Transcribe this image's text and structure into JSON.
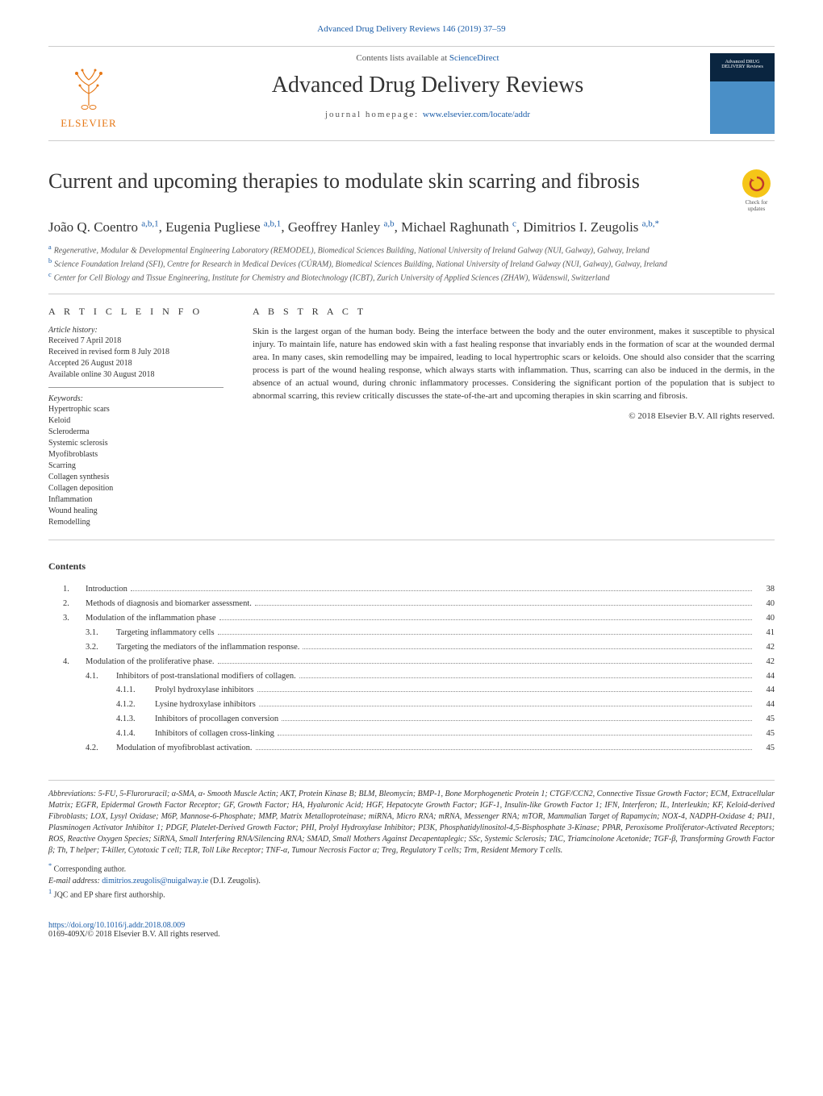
{
  "citation": "Advanced Drug Delivery Reviews 146 (2019) 37–59",
  "banner": {
    "contents_prefix": "Contents lists available at ",
    "contents_link": "ScienceDirect",
    "journal_title": "Advanced Drug Delivery Reviews",
    "homepage_prefix": "journal homepage: ",
    "homepage_url": "www.elsevier.com/locate/addr",
    "publisher": "ELSEVIER",
    "cover_label": "Advanced DRUG DELIVERY Reviews",
    "check_updates": "Check for updates"
  },
  "paper": {
    "title": "Current and upcoming therapies to modulate skin scarring and fibrosis",
    "authors_html": "João Q. Coentro <sup>a,b,1</sup>, Eugenia Pugliese <sup>a,b,1</sup>, Geoffrey Hanley <sup>a,b</sup>, Michael Raghunath <sup>c</sup>, Dimitrios I. Zeugolis <sup>a,b,*</sup>",
    "authors": [
      {
        "name": "João Q. Coentro",
        "sup": "a,b,1"
      },
      {
        "name": "Eugenia Pugliese",
        "sup": "a,b,1"
      },
      {
        "name": "Geoffrey Hanley",
        "sup": "a,b"
      },
      {
        "name": "Michael Raghunath",
        "sup": "c"
      },
      {
        "name": "Dimitrios I. Zeugolis",
        "sup": "a,b,*"
      }
    ],
    "affiliations": [
      {
        "key": "a",
        "text": "Regenerative, Modular & Developmental Engineering Laboratory (REMODEL), Biomedical Sciences Building, National University of Ireland Galway (NUI, Galway), Galway, Ireland"
      },
      {
        "key": "b",
        "text": "Science Foundation Ireland (SFI), Centre for Research in Medical Devices (CÚRAM), Biomedical Sciences Building, National University of Ireland Galway (NUI, Galway), Galway, Ireland"
      },
      {
        "key": "c",
        "text": "Center for Cell Biology and Tissue Engineering, Institute for Chemistry and Biotechnology (ICBT), Zurich University of Applied Sciences (ZHAW), Wädenswil, Switzerland"
      }
    ]
  },
  "article_info": {
    "head": "A R T I C L E   I N F O",
    "history_label": "Article history:",
    "history": [
      "Received 7 April 2018",
      "Received in revised form 8 July 2018",
      "Accepted 26 August 2018",
      "Available online 30 August 2018"
    ],
    "keywords_label": "Keywords:",
    "keywords": [
      "Hypertrophic scars",
      "Keloid",
      "Scleroderma",
      "Systemic sclerosis",
      "Myofibroblasts",
      "Scarring",
      "Collagen synthesis",
      "Collagen deposition",
      "Inflammation",
      "Wound healing",
      "Remodelling"
    ]
  },
  "abstract": {
    "head": "A B S T R A C T",
    "text": "Skin is the largest organ of the human body. Being the interface between the body and the outer environment, makes it susceptible to physical injury. To maintain life, nature has endowed skin with a fast healing response that invariably ends in the formation of scar at the wounded dermal area. In many cases, skin remodelling may be impaired, leading to local hypertrophic scars or keloids. One should also consider that the scarring process is part of the wound healing response, which always starts with inflammation. Thus, scarring can also be induced in the dermis, in the absence of an actual wound, during chronic inflammatory processes. Considering the significant portion of the population that is subject to abnormal scarring, this review critically discusses the state-of-the-art and upcoming therapies in skin scarring and fibrosis.",
    "copyright": "© 2018 Elsevier B.V. All rights reserved."
  },
  "contents": {
    "heading": "Contents",
    "items": [
      {
        "level": 1,
        "num": "1.",
        "title": "Introduction",
        "page": "38"
      },
      {
        "level": 1,
        "num": "2.",
        "title": "Methods of diagnosis and biomarker assessment.",
        "page": "40"
      },
      {
        "level": 1,
        "num": "3.",
        "title": "Modulation of the inflammation phase",
        "page": "40"
      },
      {
        "level": 2,
        "num": "3.1.",
        "title": "Targeting inflammatory cells",
        "page": "41"
      },
      {
        "level": 2,
        "num": "3.2.",
        "title": "Targeting the mediators of the inflammation response.",
        "page": "42"
      },
      {
        "level": 1,
        "num": "4.",
        "title": "Modulation of the proliferative phase.",
        "page": "42"
      },
      {
        "level": 2,
        "num": "4.1.",
        "title": "Inhibitors of post-translational modifiers of collagen.",
        "page": "44"
      },
      {
        "level": 3,
        "num": "4.1.1.",
        "title": "Prolyl hydroxylase inhibitors",
        "page": "44"
      },
      {
        "level": 3,
        "num": "4.1.2.",
        "title": "Lysine hydroxylase inhibitors",
        "page": "44"
      },
      {
        "level": 3,
        "num": "4.1.3.",
        "title": "Inhibitors of procollagen conversion",
        "page": "45"
      },
      {
        "level": 3,
        "num": "4.1.4.",
        "title": "Inhibitors of collagen cross-linking",
        "page": "45"
      },
      {
        "level": 2,
        "num": "4.2.",
        "title": "Modulation of myofibroblast activation.",
        "page": "45"
      }
    ]
  },
  "abbreviations": {
    "label": "Abbreviations:",
    "text": "5-FU, 5-Fluroruracil; α-SMA, α- Smooth Muscle Actin; AKT, Protein Kinase B; BLM, Bleomycin; BMP-1, Bone Morphogenetic Protein 1; CTGF/CCN2, Connective Tissue Growth Factor; ECM, Extracellular Matrix; EGFR, Epidermal Growth Factor Receptor; GF, Growth Factor; HA, Hyaluronic Acid; HGF, Hepatocyte Growth Factor; IGF-1, Insulin-like Growth Factor 1; IFN, Interferon; IL, Interleukin; KF, Keloid-derived Fibroblasts; LOX, Lysyl Oxidase; M6P, Mannose-6-Phosphate; MMP, Matrix Metalloproteinase; miRNA, Micro RNA; mRNA, Messenger RNA; mTOR, Mammalian Target of Rapamycin; NOX-4, NADPH-Oxidase 4; PAI1, Plasminogen Activator Inhibitor 1; PDGF, Platelet-Derived Growth Factor; PHI, Prolyl Hydroxylase Inhibitor; PI3K, Phosphatidylinositol-4,5-Bisphosphate 3-Kinase; PPAR, Peroxisome Proliferator-Activated Receptors; ROS, Reactive Oxygen Species; SiRNA, Small Interfering RNA/Silencing RNA; SMAD, Small Mothers Against Decapentaplegic; SSc, Systemic Sclerosis; TAC, Triamcinolone Acetonide; TGF-β, Transforming Growth Factor β; Th, T helper; T-killer, Cytotoxic T cell; TLR, Toll Like Receptor; TNF-α, Tumour Necrosis Factor α; Treg, Regulatory T cells; Trm, Resident Memory T cells."
  },
  "footnotes": {
    "corresponding_mark": "*",
    "corresponding": "Corresponding author.",
    "email_label": "E-mail address:",
    "email": "dimitrios.zeugolis@nuigalway.ie",
    "email_attr": " (D.I. Zeugolis).",
    "shared_mark": "1",
    "shared": "JQC and EP share first authorship."
  },
  "doi": {
    "url": "https://doi.org/10.1016/j.addr.2018.08.009",
    "issn_line": "0169-409X/© 2018 Elsevier B.V. All rights reserved."
  },
  "colors": {
    "link": "#1a5ca8",
    "publisher": "#e67817",
    "text": "#333333",
    "rule": "#cccccc"
  }
}
